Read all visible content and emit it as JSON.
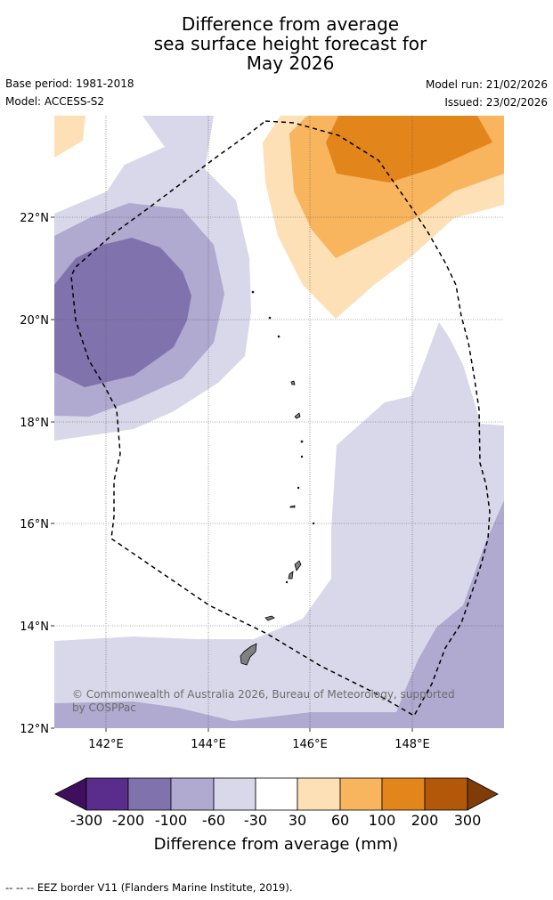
{
  "header": {
    "title_line1": "Difference from average",
    "title_line2": "sea surface height forecast for",
    "title_line3": "May 2026",
    "base_period": "Base period: 1981-2018",
    "model": "Model: ACCESS-S2",
    "model_run": "Model run: 21/02/2026",
    "issued": "Issued: 23/02/2026"
  },
  "map": {
    "lat_labels": [
      "22°N",
      "20°N",
      "18°N",
      "16°N",
      "14°N",
      "12°N"
    ],
    "lon_labels": [
      "142°E",
      "144°E",
      "146°E",
      "148°E"
    ],
    "attribution_line1": "© Commonwealth of Australia 2026, Bureau of Meteorology, supported",
    "attribution_line2": "by COSPPac",
    "colors": {
      "minus300": "#3f0f5e",
      "minus200": "#5a2d8c",
      "minus100": "#8073ad",
      "minus60": "#b0a9d0",
      "minus30": "#d8d8ea",
      "neutral": "#ffffff",
      "plus30": "#fde0b6",
      "plus60": "#f9b45e",
      "plus100": "#e2861c",
      "plus200": "#b35809",
      "plus300": "#7f3b08",
      "land": "#808080",
      "eez": "#000000"
    }
  },
  "legend": {
    "ticks": [
      "-300",
      "-200",
      "-100",
      "-60",
      "-30",
      "30",
      "60",
      "100",
      "200",
      "300"
    ],
    "label": "Difference from average (mm)"
  },
  "footer": {
    "eez_note": "--  --  -- EEZ border V11 (Flanders Marine Institute, 2019)."
  }
}
